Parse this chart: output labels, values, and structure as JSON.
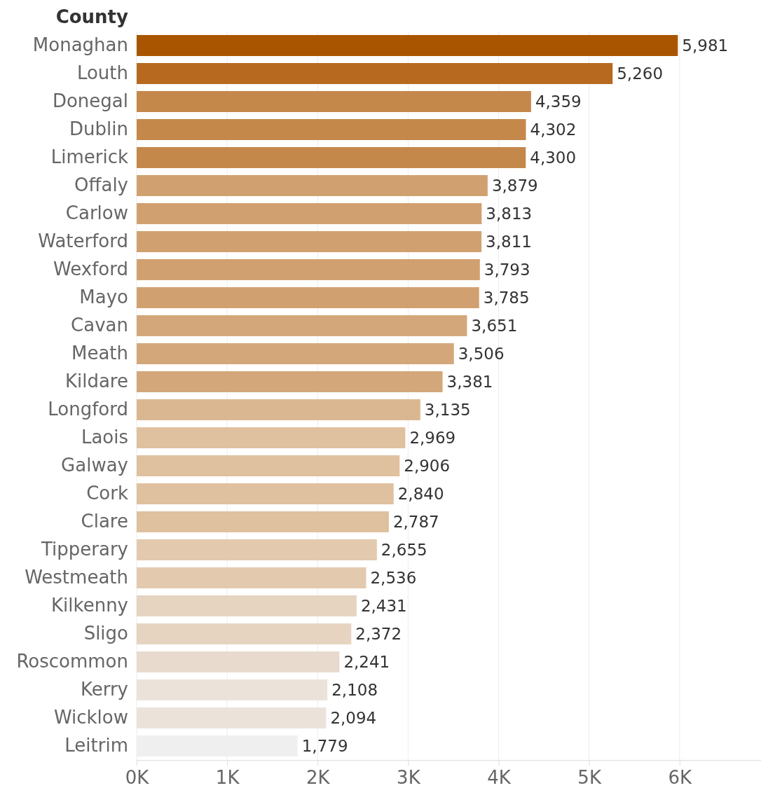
{
  "chart_data": {
    "type": "bar",
    "orientation": "horizontal",
    "ylabel": "County",
    "categories": [
      "Monaghan",
      "Louth",
      "Donegal",
      "Dublin",
      "Limerick",
      "Offaly",
      "Carlow",
      "Waterford",
      "Wexford",
      "Mayo",
      "Cavan",
      "Meath",
      "Kildare",
      "Longford",
      "Laois",
      "Galway",
      "Cork",
      "Clare",
      "Tipperary",
      "Westmeath",
      "Kilkenny",
      "Sligo",
      "Roscommon",
      "Kerry",
      "Wicklow",
      "Leitrim"
    ],
    "values": [
      5981,
      5260,
      4359,
      4302,
      4300,
      3879,
      3813,
      3811,
      3793,
      3785,
      3651,
      3506,
      3381,
      3135,
      2969,
      2906,
      2840,
      2787,
      2655,
      2536,
      2431,
      2372,
      2241,
      2108,
      2094,
      1779
    ],
    "colors": [
      "#a95500",
      "#b7691f",
      "#c4884b",
      "#c4884b",
      "#c4884b",
      "#d1a070",
      "#d1a070",
      "#d1a070",
      "#d1a070",
      "#d1a070",
      "#d4a77a",
      "#d4a77a",
      "#d4a77a",
      "#dbb791",
      "#dfc09f",
      "#dfc09f",
      "#dfc09f",
      "#dfc09f",
      "#e3c9ae",
      "#e3c9ae",
      "#e6d4c1",
      "#e6d4c1",
      "#e8dbcd",
      "#ebe3da",
      "#ebe3da",
      "#efefef"
    ],
    "xlim": [
      0,
      6900
    ],
    "xticks": [
      {
        "value": 0,
        "label": "0K"
      },
      {
        "value": 1000,
        "label": "1K"
      },
      {
        "value": 2000,
        "label": "2K"
      },
      {
        "value": 3000,
        "label": "3K"
      },
      {
        "value": 4000,
        "label": "4K"
      },
      {
        "value": 5000,
        "label": "5K"
      },
      {
        "value": 6000,
        "label": "6K"
      }
    ],
    "value_labels": [
      "5,981",
      "5,260",
      "4,359",
      "4,302",
      "4,300",
      "3,879",
      "3,813",
      "3,811",
      "3,793",
      "3,785",
      "3,651",
      "3,506",
      "3,381",
      "3,135",
      "2,969",
      "2,906",
      "2,840",
      "2,787",
      "2,655",
      "2,536",
      "2,431",
      "2,372",
      "2,241",
      "2,108",
      "2,094",
      "1,779"
    ],
    "grid": "x"
  }
}
